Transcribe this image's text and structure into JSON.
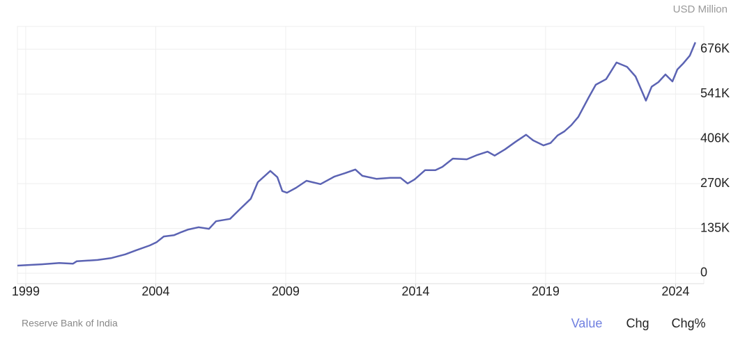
{
  "chart_data": {
    "type": "line",
    "unit": "USD Million",
    "source": "Reserve Bank of India",
    "buttons": [
      "Value",
      "Chg",
      "Chg%"
    ],
    "color": "#5b63b3",
    "grid": true,
    "x": [
      1998.68,
      1999.62,
      2000.29,
      2000.82,
      2000.96,
      2001.76,
      2002.3,
      2002.83,
      2003.24,
      2003.77,
      2004.04,
      2004.31,
      2004.71,
      2004.98,
      2005.25,
      2005.65,
      2006.05,
      2006.32,
      2006.86,
      2007.26,
      2007.66,
      2007.93,
      2008.41,
      2008.68,
      2008.87,
      2009.05,
      2009.4,
      2009.8,
      2010.34,
      2010.88,
      2011.28,
      2011.68,
      2011.95,
      2012.49,
      2013.02,
      2013.42,
      2013.69,
      2013.96,
      2014.36,
      2014.76,
      2015.03,
      2015.43,
      2015.97,
      2016.37,
      2016.77,
      2017.04,
      2017.44,
      2017.85,
      2018.25,
      2018.52,
      2018.92,
      2019.19,
      2019.46,
      2019.72,
      2019.99,
      2020.26,
      2020.66,
      2020.93,
      2021.33,
      2021.73,
      2022.13,
      2022.46,
      2022.67,
      2022.86,
      2023.08,
      2023.34,
      2023.61,
      2023.88,
      2024.07,
      2024.28,
      2024.55,
      2024.76
    ],
    "values": [
      23000,
      27000,
      31000,
      29000,
      36000,
      40000,
      46000,
      57000,
      69000,
      84000,
      94000,
      111000,
      115000,
      124000,
      132000,
      139000,
      134000,
      157000,
      164000,
      195000,
      225000,
      275000,
      309000,
      290000,
      248000,
      243000,
      258000,
      279000,
      269000,
      292000,
      302000,
      313000,
      294000,
      285000,
      288000,
      288000,
      271000,
      283000,
      311000,
      311000,
      321000,
      346000,
      344000,
      357000,
      367000,
      355000,
      374000,
      397000,
      418000,
      401000,
      386000,
      393000,
      416000,
      428000,
      447000,
      472000,
      531000,
      569000,
      586000,
      636000,
      623000,
      594000,
      556000,
      521000,
      563000,
      577000,
      600000,
      579000,
      615000,
      632000,
      657000,
      697000
    ],
    "xlim": [
      1998.68,
      2024.82
    ],
    "xticks": [
      1999,
      2004,
      2009,
      2014,
      2019,
      2024
    ],
    "ylim": [
      -31500,
      745000
    ],
    "yticks": [
      0,
      {
        "value": 135200,
        "label": "135K"
      },
      {
        "value": 270400,
        "label": "270K"
      },
      {
        "value": 405600,
        "label": "406K"
      },
      {
        "value": 540800,
        "label": "541K"
      },
      {
        "value": 676000,
        "label": "676K"
      }
    ]
  }
}
